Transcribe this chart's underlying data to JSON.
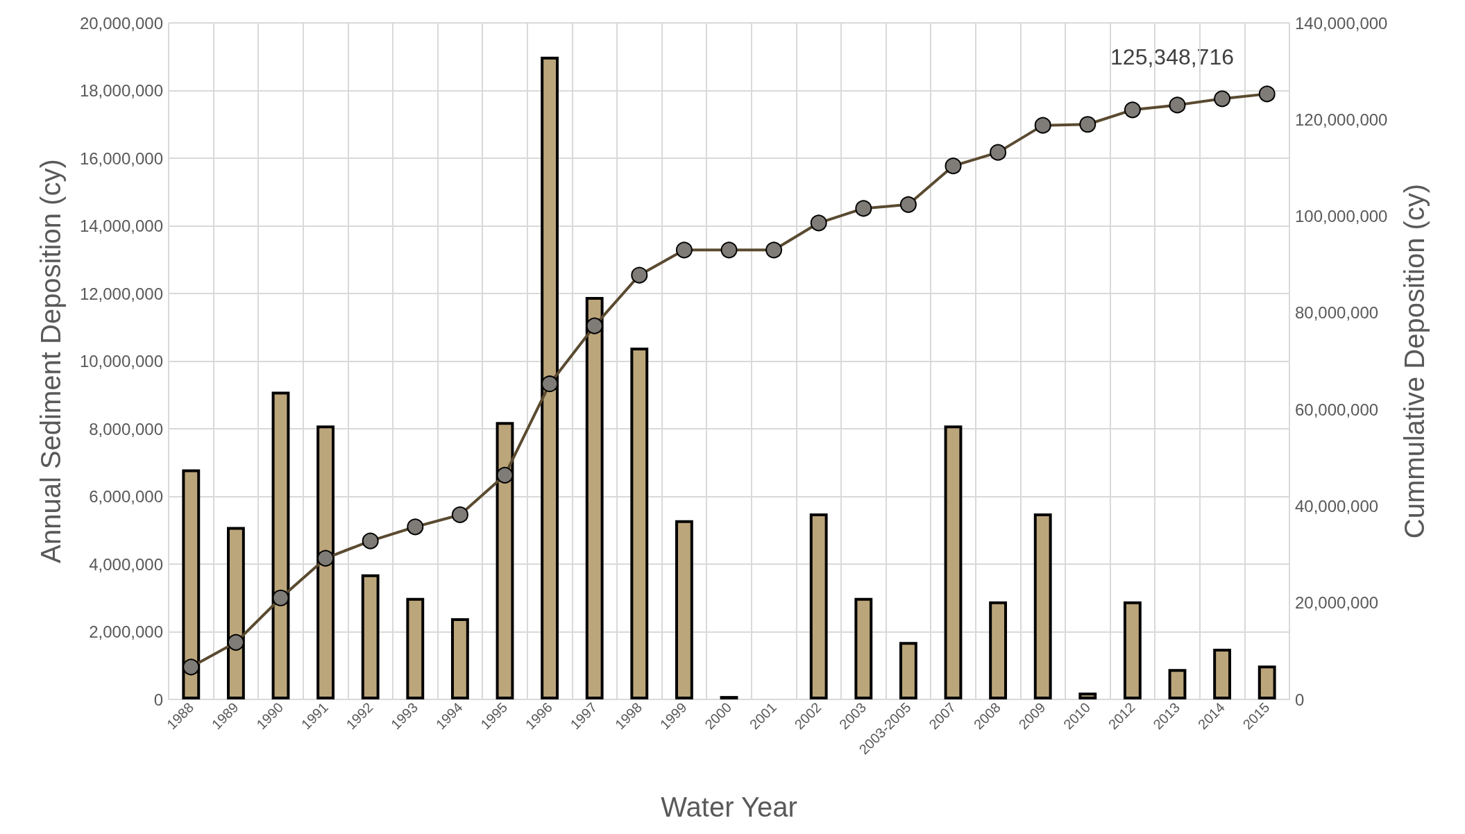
{
  "chart_data": {
    "type": "bar",
    "xlabel": "Water Year",
    "ylabel": "Annual Sediment Deposition (cy)",
    "y2label": "Cummulative Deposition (cy)",
    "categories": [
      "1988",
      "1989",
      "1990",
      "1991",
      "1992",
      "1993",
      "1994",
      "1995",
      "1996",
      "1997",
      "1998",
      "1999",
      "2000",
      "2001",
      "2002",
      "2003",
      "2003-2005",
      "2007",
      "2008",
      "2009",
      "2010",
      "2012",
      "2013",
      "2014",
      "2015"
    ],
    "series": [
      {
        "color": "#bba57a",
        "values": [
          6800000,
          5100000,
          9100000,
          8100000,
          3700000,
          3000000,
          2400000,
          8200000,
          19000000,
          11900000,
          10400000,
          5300000,
          100000,
          null,
          5500000,
          3000000,
          1700000,
          8100000,
          2900000,
          5500000,
          200000,
          2900000,
          900000,
          1500000,
          1000000
        ]
      },
      {
        "type": "line",
        "axis": "y2",
        "color": "#5a4a30",
        "marker": "circle",
        "values": [
          6700000,
          11800000,
          21000000,
          29200000,
          32800000,
          35700000,
          38200000,
          46400000,
          65300000,
          77300000,
          87800000,
          93000000,
          93000000,
          93000000,
          98600000,
          101600000,
          102400000,
          110400000,
          113200000,
          118800000,
          119000000,
          122000000,
          123000000,
          124300000,
          125300000
        ]
      }
    ],
    "ylim": [
      0,
      20000000
    ],
    "yticks": [
      0,
      {
        "value": 2000000,
        "label": "2,000,000"
      },
      {
        "value": 4000000,
        "label": "4,000,000"
      },
      {
        "value": 6000000,
        "label": "6,000,000"
      },
      {
        "value": 8000000,
        "label": "8,000,000"
      },
      {
        "value": 10000000,
        "label": "10,000,000"
      },
      {
        "value": 12000000,
        "label": "12,000,000"
      },
      {
        "value": 14000000,
        "label": "14,000,000"
      },
      {
        "value": 16000000,
        "label": "16,000,000"
      },
      {
        "value": 18000000,
        "label": "18,000,000"
      },
      {
        "value": 20000000,
        "label": "20,000,000"
      }
    ],
    "y2lim": [
      0,
      140000000
    ],
    "y2ticks": [
      0,
      {
        "value": 20000000,
        "label": "20,000,000"
      },
      {
        "value": 40000000,
        "label": "40,000,000"
      },
      {
        "value": 60000000,
        "label": "60,000,000"
      },
      {
        "value": 80000000,
        "label": "80,000,000"
      },
      {
        "value": 100000000,
        "label": "100,000,000"
      },
      {
        "value": 120000000,
        "label": "120,000,000"
      },
      {
        "value": 140000000,
        "label": "140,000,000"
      }
    ],
    "grid": true,
    "annotations": [
      "125,348,716"
    ]
  }
}
